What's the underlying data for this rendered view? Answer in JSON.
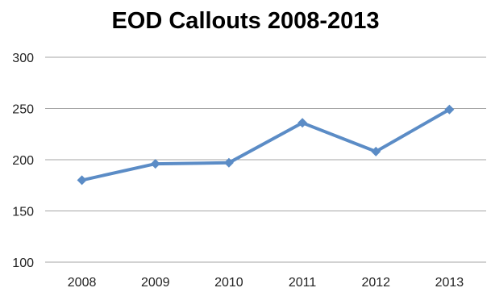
{
  "chart_data": {
    "type": "line",
    "title": "EOD Callouts 2008-2013",
    "xlabel": "",
    "ylabel": "",
    "categories": [
      "2008",
      "2009",
      "2010",
      "2011",
      "2012",
      "2013"
    ],
    "series": [
      {
        "values": [
          180,
          196,
          197,
          236,
          208,
          249
        ]
      }
    ],
    "ylim": [
      100,
      300
    ],
    "yticks": [
      "100",
      "150",
      "200",
      "250",
      "300"
    ],
    "grid": true,
    "legend": "none",
    "colors": {
      "series": "#5b8cc6",
      "grid": "#a6a6a6"
    }
  }
}
